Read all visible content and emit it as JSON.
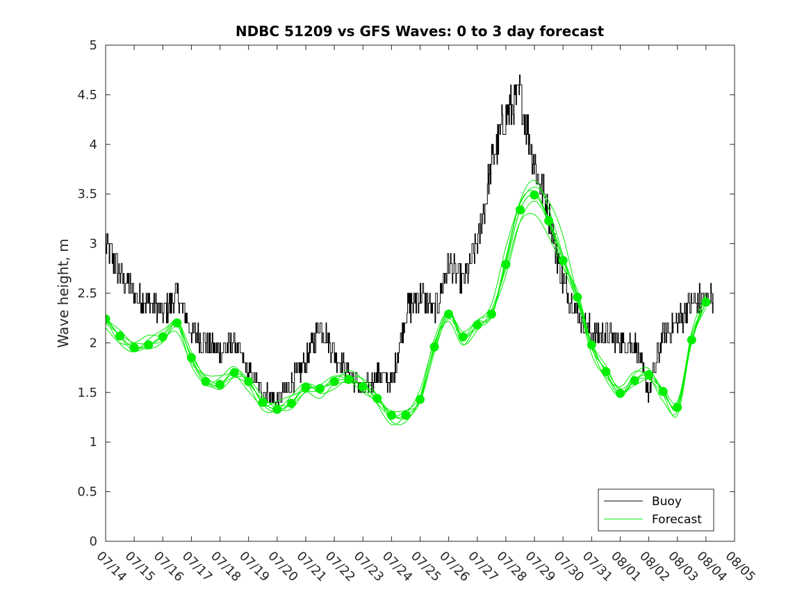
{
  "chart_data": {
    "type": "line",
    "title": "NDBC 51209 vs GFS Waves: 0 to 3 day forecast",
    "xlabel": "",
    "ylabel": "Wave height, m",
    "x_tick_labels": [
      "07/14",
      "07/15",
      "07/16",
      "07/17",
      "07/18",
      "07/19",
      "07/20",
      "07/21",
      "07/22",
      "07/23",
      "07/24",
      "07/25",
      "07/26",
      "07/27",
      "07/28",
      "07/29",
      "07/30",
      "07/31",
      "08/01",
      "08/02",
      "08/03",
      "08/04",
      "08/05"
    ],
    "xlim": [
      0,
      22
    ],
    "ylim": [
      0,
      5
    ],
    "y_ticks": [
      0,
      0.5,
      1,
      1.5,
      2,
      2.5,
      3,
      3.5,
      4,
      4.5,
      5
    ],
    "y_tick_labels": [
      "0",
      "0.5",
      "1",
      "1.5",
      "2",
      "2.5",
      "3",
      "3.5",
      "4",
      "4.5",
      "5"
    ],
    "grid": false,
    "legend": {
      "placement": "bottom-right",
      "entries": [
        "Buoy",
        "Forecast"
      ]
    },
    "colors": {
      "buoy": "#000000",
      "forecast": "#00ee00"
    },
    "series": [
      {
        "name": "Buoy",
        "color": "#000000",
        "x": [
          0,
          0.5,
          1,
          1.5,
          2,
          2.5,
          3,
          3.5,
          4,
          4.5,
          5,
          5.5,
          6,
          6.5,
          7,
          7.5,
          8,
          8.5,
          9,
          9.5,
          10,
          10.5,
          11,
          11.5,
          12,
          12.5,
          13,
          13.5,
          14,
          14.5,
          15,
          15.5,
          16,
          16.5,
          17,
          17.5,
          18,
          18.5,
          19,
          19.5,
          20,
          20.5,
          21,
          21.25
        ],
        "y": [
          3.0,
          2.7,
          2.5,
          2.4,
          2.3,
          2.5,
          2.1,
          2.0,
          1.9,
          2.0,
          1.7,
          1.5,
          1.4,
          1.6,
          1.8,
          2.2,
          1.9,
          1.7,
          1.5,
          1.7,
          1.6,
          2.3,
          2.5,
          2.3,
          2.8,
          2.6,
          3.0,
          3.8,
          4.3,
          4.5,
          3.8,
          3.3,
          2.6,
          2.3,
          2.1,
          2.1,
          2.0,
          2.0,
          1.5,
          2.1,
          2.2,
          2.4,
          2.45,
          2.5
        ]
      },
      {
        "name": "Forecast",
        "color": "#00ee00",
        "x": [
          0,
          0.5,
          1,
          1.5,
          2,
          2.5,
          3,
          3.5,
          4,
          4.5,
          5,
          5.5,
          6,
          6.5,
          7,
          7.5,
          8,
          8.5,
          9,
          9.5,
          10,
          10.5,
          11,
          11.5,
          12,
          12.5,
          13,
          13.5,
          14,
          14.5,
          15,
          15.5,
          16,
          16.5,
          17,
          17.5,
          18,
          18.5,
          19,
          19.5,
          20,
          20.5,
          21
        ],
        "y": [
          2.24,
          2.07,
          1.95,
          1.98,
          2.06,
          2.2,
          1.85,
          1.61,
          1.58,
          1.7,
          1.61,
          1.4,
          1.33,
          1.39,
          1.55,
          1.54,
          1.61,
          1.63,
          1.56,
          1.44,
          1.27,
          1.27,
          1.43,
          1.96,
          2.29,
          2.06,
          2.18,
          2.29,
          2.79,
          3.34,
          3.49,
          3.23,
          2.83,
          2.46,
          1.98,
          1.71,
          1.49,
          1.62,
          1.68,
          1.51,
          1.35,
          2.03,
          2.41
        ]
      }
    ]
  }
}
